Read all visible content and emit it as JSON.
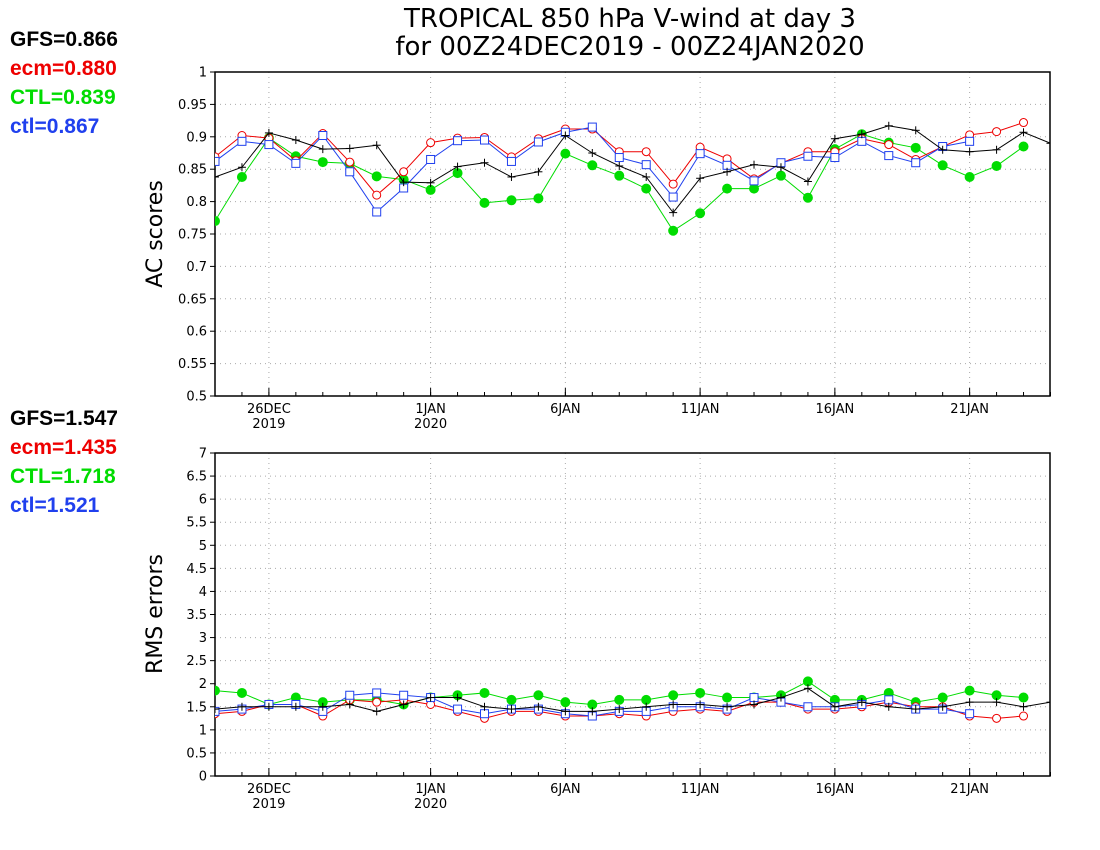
{
  "title": {
    "line1": "TROPICAL 850 hPa V-wind at day 3",
    "line2": "for 00Z24DEC2019 - 00Z24JAN2020"
  },
  "colors": {
    "GFS": "#000000",
    "ecm": "#ee0000",
    "CTL": "#00dc00",
    "ctl": "#2040ee"
  },
  "legend_top": [
    {
      "text": "GFS=0.866",
      "color": "#000000"
    },
    {
      "text": "ecm=0.880",
      "color": "#ee0000"
    },
    {
      "text": "CTL=0.839",
      "color": "#00dc00"
    },
    {
      "text": "ctl=0.867",
      "color": "#2040ee"
    }
  ],
  "legend_bottom": [
    {
      "text": "GFS=1.547",
      "color": "#000000"
    },
    {
      "text": "ecm=1.435",
      "color": "#ee0000"
    },
    {
      "text": "CTL=1.718",
      "color": "#00dc00"
    },
    {
      "text": "ctl=1.521",
      "color": "#2040ee"
    }
  ],
  "chart_data": [
    {
      "type": "line",
      "ylabel": "AC scores",
      "ylim": [
        0.5,
        1.0
      ],
      "yticks": [
        "0.5",
        "0.55",
        "0.6",
        "0.65",
        "0.7",
        "0.75",
        "0.8",
        "0.85",
        "0.9",
        "0.95",
        "1"
      ],
      "xlim": [
        0,
        31
      ],
      "xticks": [
        {
          "day": 2,
          "line1": "26DEC",
          "line2": "2019"
        },
        {
          "day": 8,
          "line1": "1JAN",
          "line2": "2020"
        },
        {
          "day": 13,
          "line1": "6JAN",
          "line2": ""
        },
        {
          "day": 18,
          "line1": "11JAN",
          "line2": ""
        },
        {
          "day": 23,
          "line1": "16JAN",
          "line2": ""
        },
        {
          "day": 28,
          "line1": "21JAN",
          "line2": ""
        }
      ],
      "grid": true,
      "series": [
        {
          "name": "GFS",
          "marker": "plus",
          "x": [
            0,
            1,
            2,
            3,
            4,
            5,
            6,
            7,
            8,
            9,
            10,
            11,
            12,
            13,
            14,
            15,
            16,
            17,
            18,
            19,
            20,
            21,
            22,
            23,
            24,
            25,
            26,
            27,
            28,
            29,
            30,
            31
          ],
          "values": [
            0.838,
            0.853,
            0.906,
            0.895,
            0.881,
            0.882,
            0.887,
            0.83,
            0.829,
            0.854,
            0.86,
            0.838,
            0.846,
            0.902,
            0.875,
            0.855,
            0.838,
            0.783,
            0.836,
            0.846,
            0.857,
            0.853,
            0.831,
            0.897,
            0.904,
            0.917,
            0.91,
            0.88,
            0.877,
            0.88,
            0.907,
            0.89
          ]
        },
        {
          "name": "ecm",
          "marker": "circle",
          "x": [
            0,
            1,
            2,
            3,
            4,
            5,
            6,
            7,
            8,
            9,
            10,
            11,
            12,
            13,
            14,
            15,
            16,
            17,
            18,
            19,
            20,
            21,
            22,
            23,
            24,
            25,
            26,
            27,
            28,
            29,
            30
          ],
          "values": [
            0.869,
            0.902,
            0.898,
            0.863,
            0.905,
            0.861,
            0.81,
            0.846,
            0.891,
            0.898,
            0.899,
            0.869,
            0.897,
            0.912,
            0.912,
            0.877,
            0.877,
            0.827,
            0.884,
            0.866,
            0.835,
            0.859,
            0.877,
            0.877,
            0.897,
            0.888,
            0.865,
            0.885,
            0.903,
            0.908,
            0.922
          ]
        },
        {
          "name": "CTL",
          "marker": "dot",
          "x": [
            0,
            1,
            2,
            3,
            4,
            5,
            6,
            7,
            8,
            9,
            10,
            11,
            12,
            13,
            14,
            15,
            16,
            17,
            18,
            19,
            20,
            21,
            22,
            23,
            24,
            25,
            26,
            27,
            28,
            29,
            30
          ],
          "values": [
            0.77,
            0.838,
            0.898,
            0.87,
            0.861,
            0.859,
            0.839,
            0.834,
            0.818,
            0.844,
            0.798,
            0.802,
            0.805,
            0.874,
            0.856,
            0.84,
            0.82,
            0.755,
            0.782,
            0.82,
            0.82,
            0.84,
            0.806,
            0.881,
            0.904,
            0.891,
            0.883,
            0.856,
            0.838,
            0.855,
            0.885
          ]
        },
        {
          "name": "ctl",
          "marker": "square",
          "x": [
            0,
            1,
            2,
            3,
            4,
            5,
            6,
            7,
            8,
            9,
            10,
            11,
            12,
            13,
            14,
            15,
            16,
            17,
            18,
            19,
            20,
            21,
            22,
            23,
            24,
            25,
            26,
            27,
            28,
            29
          ],
          "values": [
            0.862,
            0.893,
            0.888,
            0.859,
            0.902,
            0.846,
            0.784,
            0.821,
            0.865,
            0.894,
            0.895,
            0.862,
            0.892,
            0.907,
            0.915,
            0.868,
            0.857,
            0.807,
            0.874,
            0.856,
            0.832,
            0.86,
            0.87,
            0.868,
            0.893,
            0.871,
            0.86,
            0.885,
            0.893,
            null
          ]
        }
      ]
    },
    {
      "type": "line",
      "ylabel": "RMS errors",
      "ylim": [
        0,
        7
      ],
      "yticks": [
        "0",
        "0.5",
        "1",
        "1.5",
        "2",
        "2.5",
        "3",
        "3.5",
        "4",
        "4.5",
        "5",
        "5.5",
        "6",
        "6.5",
        "7"
      ],
      "xlim": [
        0,
        31
      ],
      "xticks": [
        {
          "day": 2,
          "line1": "26DEC",
          "line2": "2019"
        },
        {
          "day": 8,
          "line1": "1JAN",
          "line2": "2020"
        },
        {
          "day": 13,
          "line1": "6JAN",
          "line2": ""
        },
        {
          "day": 18,
          "line1": "11JAN",
          "line2": ""
        },
        {
          "day": 23,
          "line1": "16JAN",
          "line2": ""
        },
        {
          "day": 28,
          "line1": "21JAN",
          "line2": ""
        }
      ],
      "grid": true,
      "series": [
        {
          "name": "GFS",
          "marker": "plus",
          "x": [
            0,
            1,
            2,
            3,
            4,
            5,
            6,
            7,
            8,
            9,
            10,
            11,
            12,
            13,
            14,
            15,
            16,
            17,
            18,
            19,
            20,
            21,
            22,
            23,
            24,
            25,
            26,
            27,
            28,
            29,
            30,
            31
          ],
          "values": [
            1.45,
            1.5,
            1.5,
            1.5,
            1.5,
            1.55,
            1.4,
            1.55,
            1.7,
            1.7,
            1.5,
            1.45,
            1.5,
            1.4,
            1.4,
            1.45,
            1.5,
            1.55,
            1.55,
            1.5,
            1.55,
            1.7,
            1.9,
            1.5,
            1.6,
            1.5,
            1.45,
            1.5,
            1.6,
            1.6,
            1.5,
            1.6
          ]
        },
        {
          "name": "ecm",
          "marker": "circle",
          "x": [
            0,
            1,
            2,
            3,
            4,
            5,
            6,
            7,
            8,
            9,
            10,
            11,
            12,
            13,
            14,
            15,
            16,
            17,
            18,
            19,
            20,
            21,
            22,
            23,
            24,
            25,
            26,
            27,
            28,
            29,
            30
          ],
          "values": [
            1.35,
            1.4,
            1.55,
            1.55,
            1.3,
            1.65,
            1.6,
            1.65,
            1.55,
            1.4,
            1.25,
            1.4,
            1.4,
            1.3,
            1.3,
            1.35,
            1.3,
            1.4,
            1.45,
            1.4,
            1.6,
            1.6,
            1.45,
            1.45,
            1.5,
            1.6,
            1.5,
            1.5,
            1.3,
            1.25,
            1.3
          ]
        },
        {
          "name": "CTL",
          "marker": "dot",
          "x": [
            0,
            1,
            2,
            3,
            4,
            5,
            6,
            7,
            8,
            9,
            10,
            11,
            12,
            13,
            14,
            15,
            16,
            17,
            18,
            19,
            20,
            21,
            22,
            23,
            24,
            25,
            26,
            27,
            28,
            29,
            30
          ],
          "values": [
            1.85,
            1.8,
            1.55,
            1.7,
            1.6,
            1.65,
            1.65,
            1.55,
            1.7,
            1.75,
            1.8,
            1.65,
            1.75,
            1.6,
            1.55,
            1.65,
            1.65,
            1.75,
            1.8,
            1.7,
            1.7,
            1.75,
            2.05,
            1.65,
            1.65,
            1.8,
            1.6,
            1.7,
            1.85,
            1.75,
            1.7
          ]
        },
        {
          "name": "ctl",
          "marker": "square",
          "x": [
            0,
            1,
            2,
            3,
            4,
            5,
            6,
            7,
            8,
            9,
            10,
            11,
            12,
            13,
            14,
            15,
            16,
            17,
            18,
            19,
            20,
            21,
            22,
            23,
            24,
            25,
            26,
            27,
            28,
            29
          ],
          "values": [
            1.4,
            1.45,
            1.55,
            1.55,
            1.4,
            1.75,
            1.8,
            1.75,
            1.7,
            1.45,
            1.35,
            1.45,
            1.45,
            1.35,
            1.3,
            1.4,
            1.4,
            1.5,
            1.5,
            1.45,
            1.7,
            1.6,
            1.5,
            1.5,
            1.55,
            1.65,
            1.45,
            1.45,
            1.35,
            null
          ]
        }
      ]
    }
  ]
}
